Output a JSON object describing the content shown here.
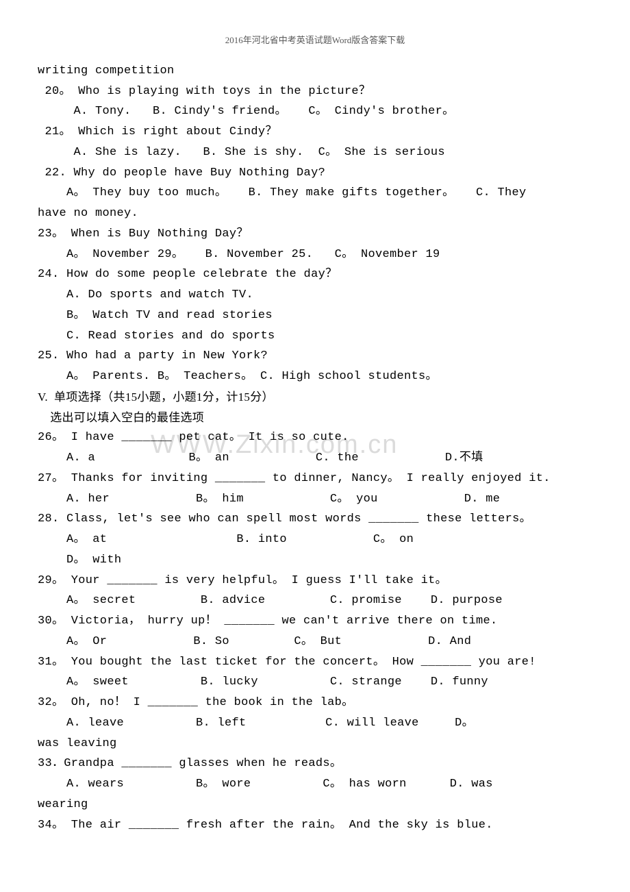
{
  "header": "2016年河北省中考英语试题Word版含答案下载",
  "watermark": "WWW.Zixin.com.cn",
  "lines": [
    {
      "t": "writing competition"
    },
    {
      "t": " 20。 Who is playing with toys in the picture？"
    },
    {
      "t": "     A. Tony.   B. Cindy's friend。   C。 Cindy's brother。"
    },
    {
      "t": " 21。 Which is right about Cindy？"
    },
    {
      "t": "     A. She is lazy.   B. She is shy.  C。 She is serious"
    },
    {
      "t": " 22. Why do people have Buy Nothing Day?"
    },
    {
      "t": "    A。 They buy too much。   B. They make gifts together。   C. They"
    },
    {
      "t": "have no money."
    },
    {
      "t": "23。 When is Buy Nothing Day？"
    },
    {
      "t": "    A。 November 29。   B. November 25.   C。 November 19"
    },
    {
      "t": "24. How do some people celebrate the day？"
    },
    {
      "t": "    A. Do sports and watch TV."
    },
    {
      "t": "    B。 Watch TV and read stories"
    },
    {
      "t": "    C. Read stories and do sports"
    },
    {
      "t": "25. Who had a party in New York?"
    },
    {
      "t": "    A。 Parents. B。 Teachers。 C. High school students。"
    },
    {
      "t": "V.  单项选择（共15小题，小题1分，计15分）",
      "c": true
    },
    {
      "t": "    选出可以填入空白的最佳选项",
      "c": true
    },
    {
      "t": "26。 I have _______ pet cat。 It is so cute."
    },
    {
      "t": "    A. a             B。 an            C. the            D.不填"
    },
    {
      "t": "27。 Thanks for inviting _______ to dinner, Nancy。 I really enjoyed it."
    },
    {
      "t": "    A. her            B。 him            C。 you            D. me"
    },
    {
      "t": "28. Class, let's see who can spell most words _______ these letters。"
    },
    {
      "t": "    A。 at                  B. into            C。 on            "
    },
    {
      "t": "    D。 with"
    },
    {
      "t": "29。 Your _______ is very helpful。 I guess I'll take it。"
    },
    {
      "t": "    A。 secret         B. advice         C. promise    D. purpose"
    },
    {
      "t": "30。 Victoria， hurry up！ _______ we can't arrive there on time."
    },
    {
      "t": "    A。 Or            B. So         C。 But            D. And"
    },
    {
      "t": "31。 You bought the last ticket for the concert。 How _______ you are!"
    },
    {
      "t": "    A。 sweet          B. lucky          C. strange    D. funny"
    },
    {
      "t": "32。 Oh, no！ I _______ the book in the lab。"
    },
    {
      "t": "    A. leave          B. left           C. will leave     D。 "
    },
    {
      "t": "was leaving"
    },
    {
      "t": "33．Grandpa _______ glasses when he reads。"
    },
    {
      "t": "    A. wears          B。 wore          C。 has worn      D. was "
    },
    {
      "t": "wearing"
    },
    {
      "t": "34。 The air _______ fresh after the rain。 And the sky is blue."
    }
  ]
}
